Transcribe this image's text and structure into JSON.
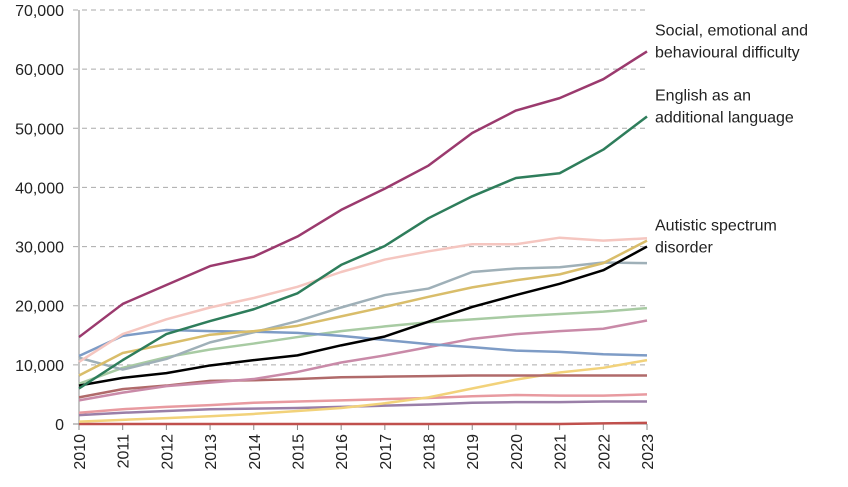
{
  "chart_data": {
    "type": "line",
    "categories": [
      "2010",
      "2011",
      "2012",
      "2013",
      "2014",
      "2015",
      "2016",
      "2017",
      "2018",
      "2019",
      "2020",
      "2021",
      "2022",
      "2023"
    ],
    "ylim": [
      0,
      70000
    ],
    "yticks": [
      0,
      {
        "value": 10000,
        "label": "10,000"
      },
      {
        "value": 20000,
        "label": "20,000"
      },
      {
        "value": 30000,
        "label": "30,000"
      },
      {
        "value": 40000,
        "label": "40,000"
      },
      {
        "value": 50000,
        "label": "50,000"
      },
      {
        "value": 60000,
        "label": "60,000"
      },
      {
        "value": 70000,
        "label": "70,000"
      }
    ],
    "grid": true,
    "series": [
      {
        "color": "#c0504d",
        "values": [
          0,
          0,
          0,
          0,
          0,
          0,
          0,
          0,
          0,
          0,
          0,
          0,
          100,
          200
        ]
      },
      {
        "color": "#9a7fa8",
        "values": [
          1500,
          1900,
          2200,
          2500,
          2600,
          2700,
          2900,
          3100,
          3300,
          3600,
          3700,
          3700,
          3800,
          3800
        ]
      },
      {
        "color": "#e89aa0",
        "values": [
          1900,
          2500,
          2900,
          3200,
          3600,
          3800,
          4000,
          4200,
          4400,
          4700,
          4900,
          4800,
          4800,
          5000
        ]
      },
      {
        "color": "#f2d27a",
        "values": [
          400,
          700,
          1000,
          1300,
          1700,
          2200,
          2700,
          3500,
          4500,
          6000,
          7500,
          8700,
          9500,
          10800
        ]
      },
      {
        "color": "#b06a6a",
        "values": [
          4500,
          5900,
          6500,
          7300,
          7400,
          7600,
          7900,
          8000,
          8100,
          8200,
          8200,
          8200,
          8200,
          8200
        ]
      },
      {
        "color": "#c98aa8",
        "values": [
          4000,
          5300,
          6400,
          7000,
          7600,
          8800,
          10400,
          11600,
          13000,
          14400,
          15200,
          15700,
          16100,
          17500
        ]
      },
      {
        "color": "#a8cba3",
        "values": [
          6800,
          9500,
          11300,
          12600,
          13600,
          14700,
          15700,
          16500,
          17200,
          17700,
          18200,
          18600,
          19000,
          19600
        ]
      },
      {
        "color": "#7e9cc6",
        "values": [
          11500,
          14900,
          15900,
          15700,
          15600,
          15400,
          14900,
          14200,
          13500,
          13000,
          12400,
          12200,
          11800,
          11600
        ]
      },
      {
        "color": "#9fb0b8",
        "values": [
          11200,
          9200,
          11000,
          13800,
          15500,
          17400,
          19700,
          21800,
          22900,
          25700,
          26300,
          26500,
          27300,
          27200
        ]
      },
      {
        "color": "#d9bd6a",
        "values": [
          8200,
          12000,
          13500,
          15100,
          15700,
          16600,
          18200,
          19800,
          21500,
          23100,
          24300,
          25300,
          27200,
          31000
        ]
      },
      {
        "color": "#f5c6c0",
        "values": [
          10500,
          15200,
          17700,
          19700,
          21300,
          23200,
          25700,
          27800,
          29200,
          30400,
          30400,
          31500,
          31000,
          31400
        ]
      },
      {
        "name": "Autistic spectrum disorder",
        "color": "#000000",
        "values": [
          6500,
          7800,
          8600,
          9900,
          10800,
          11600,
          13300,
          14800,
          17300,
          19800,
          21800,
          23700,
          26000,
          30000
        ]
      },
      {
        "name": "English as an additional language",
        "color": "#2e7d5b",
        "values": [
          6000,
          10800,
          15200,
          17400,
          19400,
          22100,
          26900,
          30100,
          34800,
          38500,
          41600,
          42400,
          46400,
          52000
        ]
      },
      {
        "name": "Social, emotional and behavioural difficulty",
        "color": "#9b3a6e",
        "values": [
          14700,
          20300,
          23500,
          26700,
          28300,
          31700,
          36200,
          39800,
          43700,
          49200,
          53000,
          55100,
          58300,
          63000
        ]
      }
    ]
  }
}
